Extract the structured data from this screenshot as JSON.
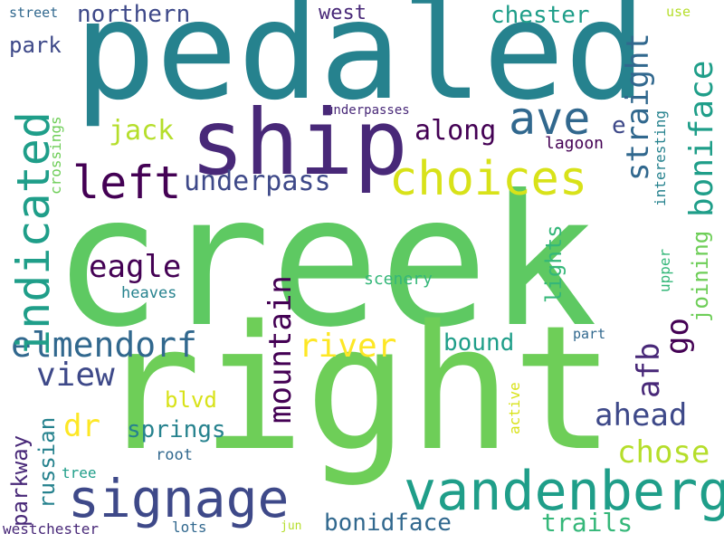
{
  "palette": {
    "dark_purple": "#440154",
    "indigo": "#482878",
    "slate_blue": "#3e4989",
    "steel_blue": "#31688e",
    "teal": "#26828e",
    "sea_green": "#1f9e89",
    "mint": "#35b779",
    "green": "#6ece58",
    "lime": "#b5de2b",
    "yellow": "#fde725"
  },
  "words": {
    "creek": "creek",
    "pedaled": "pedaled",
    "right": "right",
    "ship": "ship",
    "vandenberg": "vandenberg",
    "signage": "signage",
    "indicated": "indicated",
    "choices": "choices",
    "left": "left",
    "ave": "ave",
    "boniface": "boniface",
    "elmendorf": "elmendorf",
    "straight": "straight",
    "mountain": "mountain",
    "underpass": "underpass",
    "eagle": "eagle",
    "river": "river",
    "chose": "chose",
    "ahead": "ahead",
    "view": "view",
    "afb": "afb",
    "go": "go",
    "dr": "dr",
    "springs": "springs",
    "trails": "trails",
    "bonidface": "bonidface",
    "parkway": "parkway",
    "russian": "russian",
    "joining": "joining",
    "northern": "northern",
    "chester": "chester",
    "lights": "lights",
    "jack": "jack",
    "along": "along",
    "bound": "bound",
    "park": "park",
    "west": "west",
    "blvd": "blvd",
    "e": "e",
    "lagoon": "lagoon",
    "scenery": "scenery",
    "heaves": "heaves",
    "root": "root",
    "tree": "tree",
    "westchester": "westchester",
    "lots": "lots",
    "jun": "jun",
    "street": "street",
    "use": "use",
    "underpasses": "underpasses",
    "crossings": "crossings",
    "interesting": "interesting",
    "upper": "upper",
    "part": "part",
    "active": "active"
  }
}
